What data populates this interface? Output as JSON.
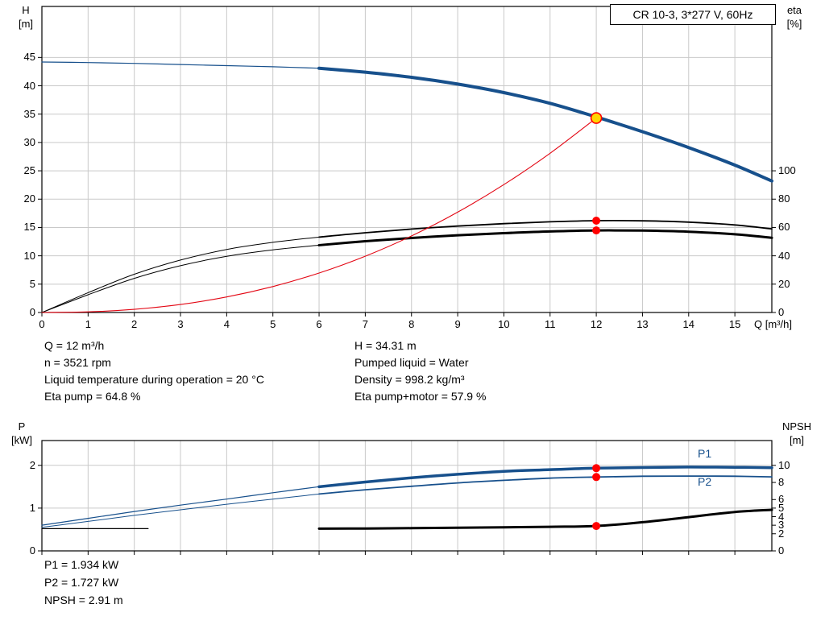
{
  "curve_labels": {
    "p1": "P1",
    "p2": "P2"
  },
  "info": {
    "left": [
      "Q = 12 m³/h",
      "n = 3521 rpm",
      "Liquid temperature during operation = 20 °C",
      "Eta pump = 64.8 %"
    ],
    "right": [
      "H = 34.31 m",
      "Pumped liquid = Water",
      "Density = 998.2 kg/m³",
      "Eta pump+motor = 57.9 %"
    ]
  },
  "results": [
    "P1 = 1.934 kW",
    "P2 = 1.727 kW",
    "NPSH = 2.91 m"
  ],
  "colors": {
    "curve_blue": "#17508c",
    "curve_black": "#000000",
    "curve_red": "#e30613",
    "dot_red": "#ff0000",
    "duty_yellow": "#ffd500",
    "grid": "#c9c9c9"
  },
  "chart_data": [
    {
      "type": "line",
      "position": "top",
      "title": "CR 10-3, 3*277 V, 60Hz",
      "x": {
        "label": "Q [m³/h]",
        "min": 0,
        "max": 15.8,
        "show_labels": true,
        "ticks": [
          0,
          1,
          2,
          3,
          4,
          5,
          6,
          7,
          8,
          9,
          10,
          11,
          12,
          13,
          14,
          15
        ]
      },
      "y_left": {
        "label_lines": [
          "H",
          "[m]"
        ],
        "min": 0,
        "max": 54,
        "ticks": [
          0,
          5,
          10,
          15,
          20,
          25,
          30,
          35,
          40,
          45
        ]
      },
      "y_right": {
        "label_lines": [
          "eta",
          "[%]"
        ],
        "ticks": [
          0,
          20,
          40,
          60,
          80,
          100
        ],
        "to_left_factor": 0.25
      },
      "series": [
        {
          "name": "eta-pump-curve",
          "axis": "right",
          "color": "curve_black",
          "w_thin": 1,
          "w_thick": 1.8,
          "thick_from": 6,
          "points": [
            [
              0,
              0
            ],
            [
              1,
              14
            ],
            [
              2,
              27
            ],
            [
              3,
              37
            ],
            [
              4,
              44.5
            ],
            [
              5,
              49.5
            ],
            [
              6,
              53.2
            ],
            [
              7,
              56.3
            ],
            [
              8,
              58.9
            ],
            [
              9,
              61.0
            ],
            [
              10,
              62.7
            ],
            [
              11,
              64.0
            ],
            [
              12,
              64.8
            ],
            [
              13,
              64.7
            ],
            [
              14,
              63.8
            ],
            [
              15,
              61.8
            ],
            [
              15.8,
              59.0
            ]
          ]
        },
        {
          "name": "eta-pump-motor-curve",
          "axis": "right",
          "color": "curve_black",
          "w_thin": 1,
          "w_thick": 3,
          "thick_from": 6,
          "points": [
            [
              0,
              0
            ],
            [
              1,
              12.5
            ],
            [
              2,
              24.1
            ],
            [
              3,
              33.0
            ],
            [
              4,
              39.7
            ],
            [
              5,
              44.2
            ],
            [
              6,
              47.5
            ],
            [
              7,
              50.3
            ],
            [
              8,
              52.6
            ],
            [
              9,
              54.5
            ],
            [
              10,
              56.0
            ],
            [
              11,
              57.2
            ],
            [
              12,
              57.9
            ],
            [
              13,
              57.8
            ],
            [
              14,
              57.0
            ],
            [
              15,
              55.2
            ],
            [
              15.8,
              52.7
            ]
          ]
        },
        {
          "name": "system-curve",
          "axis": "left",
          "color": "curve_red",
          "w_thin": 1.1,
          "w_thick": 1.1,
          "thick_from": null,
          "points": [
            [
              0,
              0
            ],
            [
              1,
              0.11
            ],
            [
              2,
              0.56
            ],
            [
              3,
              1.41
            ],
            [
              4,
              2.74
            ],
            [
              5,
              4.58
            ],
            [
              6,
              6.97
            ],
            [
              7,
              9.93
            ],
            [
              8,
              13.5
            ],
            [
              9,
              17.7
            ],
            [
              10,
              22.56
            ],
            [
              11,
              28.09
            ],
            [
              12,
              34.31
            ]
          ]
        },
        {
          "name": "head-curve",
          "axis": "left",
          "color": "curve_blue",
          "w_thin": 1.2,
          "w_thick": 4,
          "thick_from": 6,
          "points": [
            [
              0,
              44.2
            ],
            [
              1,
              44.1
            ],
            [
              2,
              43.95
            ],
            [
              3,
              43.75
            ],
            [
              4,
              43.55
            ],
            [
              5,
              43.35
            ],
            [
              6,
              43.1
            ],
            [
              7,
              42.4
            ],
            [
              8,
              41.5
            ],
            [
              9,
              40.3
            ],
            [
              10,
              38.8
            ],
            [
              11,
              36.9
            ],
            [
              12,
              34.5
            ],
            [
              13,
              31.9
            ],
            [
              14,
              29.1
            ],
            [
              15,
              26.0
            ],
            [
              15.8,
              23.2
            ]
          ]
        }
      ],
      "markers": [
        {
          "name": "duty-point",
          "q": 12,
          "value": 34.31,
          "axis": "left",
          "style": "duty"
        },
        {
          "name": "eta-pump-point",
          "q": 12,
          "value": 64.8,
          "axis": "right",
          "style": "dot"
        },
        {
          "name": "eta-pump-motor-point",
          "q": 12,
          "value": 57.9,
          "axis": "right",
          "style": "dot"
        }
      ]
    },
    {
      "type": "line",
      "position": "bottom",
      "x": {
        "min": 0,
        "max": 15.8,
        "show_labels": false,
        "ticks": [
          0,
          1,
          2,
          3,
          4,
          5,
          6,
          7,
          8,
          9,
          10,
          11,
          12,
          13,
          14,
          15
        ]
      },
      "y_left": {
        "label_lines": [
          "P",
          "[kW]"
        ],
        "min": 0,
        "max": 2.58,
        "ticks": [
          0,
          1,
          2
        ]
      },
      "y_right": {
        "label_lines": [
          "NPSH",
          "[m]"
        ],
        "ticks": [
          0,
          2,
          3,
          4,
          5,
          6,
          8,
          10
        ],
        "to_left_factor": 0.2
      },
      "series": [
        {
          "name": "p2-curve",
          "axis": "left",
          "color": "curve_blue",
          "w_thin": 1,
          "w_thick": 1.8,
          "thick_from": 6,
          "points": [
            [
              0,
              0.55
            ],
            [
              1,
              0.69
            ],
            [
              2,
              0.83
            ],
            [
              3,
              0.96
            ],
            [
              4,
              1.09
            ],
            [
              5,
              1.21
            ],
            [
              6,
              1.33
            ],
            [
              7,
              1.43
            ],
            [
              8,
              1.51
            ],
            [
              9,
              1.59
            ],
            [
              10,
              1.65
            ],
            [
              11,
              1.7
            ],
            [
              12,
              1.727
            ],
            [
              13,
              1.745
            ],
            [
              14,
              1.75
            ],
            [
              15,
              1.745
            ],
            [
              15.8,
              1.73
            ]
          ]
        },
        {
          "name": "p1-curve",
          "axis": "left",
          "color": "curve_blue",
          "w_thin": 1.2,
          "w_thick": 3.5,
          "thick_from": 6,
          "points": [
            [
              0,
              0.6
            ],
            [
              1,
              0.76
            ],
            [
              2,
              0.92
            ],
            [
              3,
              1.07
            ],
            [
              4,
              1.21
            ],
            [
              5,
              1.36
            ],
            [
              6,
              1.5
            ],
            [
              7,
              1.61
            ],
            [
              8,
              1.71
            ],
            [
              9,
              1.79
            ],
            [
              10,
              1.86
            ],
            [
              11,
              1.9
            ],
            [
              12,
              1.934
            ],
            [
              13,
              1.95
            ],
            [
              14,
              1.96
            ],
            [
              15,
              1.955
            ],
            [
              15.8,
              1.945
            ]
          ]
        },
        {
          "name": "npsh-curve-low",
          "axis": "right",
          "color": "curve_black",
          "w_thin": 1.2,
          "w_thick": 1.2,
          "thick_from": null,
          "points": [
            [
              0,
              2.6
            ],
            [
              1.2,
              2.6
            ],
            [
              2.3,
              2.6
            ]
          ]
        },
        {
          "name": "npsh-curve",
          "axis": "right",
          "color": "curve_black",
          "w_thin": 3,
          "w_thick": 3,
          "thick_from": null,
          "points": [
            [
              6,
              2.6
            ],
            [
              7,
              2.62
            ],
            [
              8,
              2.66
            ],
            [
              9,
              2.7
            ],
            [
              10,
              2.76
            ],
            [
              11,
              2.82
            ],
            [
              12,
              2.91
            ],
            [
              13,
              3.35
            ],
            [
              14,
              3.95
            ],
            [
              15,
              4.55
            ],
            [
              15.8,
              4.8
            ]
          ]
        }
      ],
      "markers": [
        {
          "name": "p1-point",
          "q": 12,
          "value": 1.934,
          "axis": "left",
          "style": "dot"
        },
        {
          "name": "p2-point",
          "q": 12,
          "value": 1.727,
          "axis": "left",
          "style": "dot"
        },
        {
          "name": "npsh-point",
          "q": 12,
          "value": 2.91,
          "axis": "right",
          "style": "dot"
        }
      ]
    }
  ]
}
